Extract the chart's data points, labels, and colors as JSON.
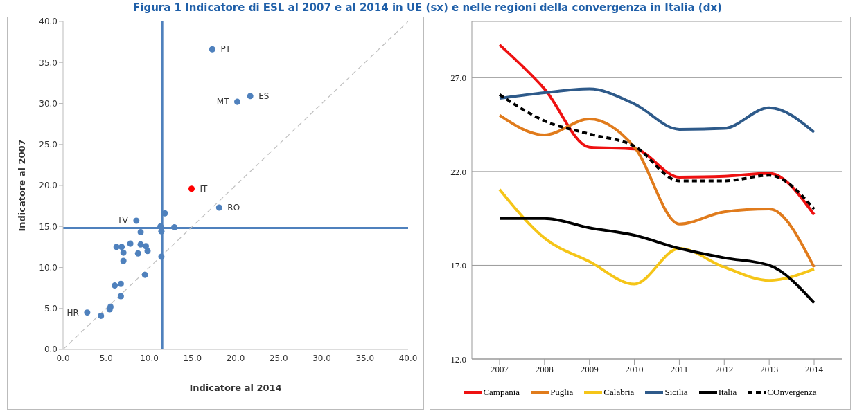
{
  "chart_data": [
    {
      "type": "scatter",
      "title": "Figura 1 Indicatore di ESL al 2007 e al 2014 in UE (sx) e nelle regioni della convergenza in Italia (dx)",
      "xlabel": "Indicatore al 2014",
      "ylabel": "Indicatore al 2007",
      "xlim": [
        0,
        40
      ],
      "ylim": [
        0,
        40
      ],
      "xticks": [
        {
          "value": 0,
          "label": "0.0"
        },
        {
          "value": 5,
          "label": "5.0"
        },
        {
          "value": 10,
          "label": "10.0"
        },
        {
          "value": 15,
          "label": "15.0"
        },
        {
          "value": 20,
          "label": "20.0"
        },
        {
          "value": 25,
          "label": "25.0"
        },
        {
          "value": 30,
          "label": "30.0"
        },
        {
          "value": 35,
          "label": "35.0"
        },
        {
          "value": 40,
          "label": "40.0"
        }
      ],
      "yticks": [
        {
          "value": 0,
          "label": "0.0"
        },
        {
          "value": 5,
          "label": "5.0"
        },
        {
          "value": 10,
          "label": "10.0"
        },
        {
          "value": 15,
          "label": "15.0"
        },
        {
          "value": 20,
          "label": "20.0"
        },
        {
          "value": 25,
          "label": "25.0"
        },
        {
          "value": 30,
          "label": "30.0"
        },
        {
          "value": 35,
          "label": "35.0"
        },
        {
          "value": 40,
          "label": "40.0"
        }
      ],
      "series": [
        {
          "type": "scatter",
          "x": [
            17.3,
            20.2,
            21.7,
            14.9,
            18.1,
            11.8,
            8.5,
            11.3,
            12.9,
            11.4,
            9.0,
            6.2,
            6.8,
            7.8,
            9.0,
            9.6,
            9.8,
            7.0,
            8.7,
            11.4,
            7.0,
            9.5,
            6.0,
            6.7,
            6.7,
            5.5,
            5.4,
            2.8,
            4.4
          ],
          "values": [
            36.6,
            30.2,
            30.9,
            19.6,
            17.3,
            16.6,
            15.7,
            15.0,
            14.9,
            14.4,
            14.3,
            12.5,
            12.5,
            12.9,
            12.8,
            12.6,
            12.0,
            11.8,
            11.7,
            11.3,
            10.8,
            9.1,
            7.8,
            8.0,
            6.5,
            5.2,
            4.9,
            4.5,
            4.1
          ],
          "colors": [
            "#4f81bd",
            "#4f81bd",
            "#4f81bd",
            "#ff0000",
            "#4f81bd",
            "#4f81bd",
            "#4f81bd",
            "#4f81bd",
            "#4f81bd",
            "#4f81bd",
            "#4f81bd",
            "#4f81bd",
            "#4f81bd",
            "#4f81bd",
            "#4f81bd",
            "#4f81bd",
            "#4f81bd",
            "#4f81bd",
            "#4f81bd",
            "#4f81bd",
            "#4f81bd",
            "#4f81bd",
            "#4f81bd",
            "#4f81bd",
            "#4f81bd",
            "#4f81bd",
            "#4f81bd",
            "#4f81bd",
            "#4f81bd"
          ]
        },
        {
          "type": "line",
          "x": [
            0,
            40
          ],
          "values": [
            0,
            40
          ],
          "color": "#bfbfbf",
          "line_style": "dashed"
        }
      ],
      "ref_lines": [
        {
          "axis": "x",
          "value": 11.5,
          "color": "#4f81bd"
        },
        {
          "axis": "y",
          "value": 14.8,
          "color": "#4f81bd"
        }
      ],
      "annotations": [
        {
          "text": "PT",
          "x": 17.3,
          "y": 36.6
        },
        {
          "text": "MT",
          "x": 20.2,
          "y": 30.2
        },
        {
          "text": "ES",
          "x": 21.7,
          "y": 30.9
        },
        {
          "text": "IT",
          "x": 14.9,
          "y": 19.6
        },
        {
          "text": "RO",
          "x": 18.1,
          "y": 17.3
        },
        {
          "text": "LV",
          "x": 8.5,
          "y": 15.7
        },
        {
          "text": "HR",
          "x": 2.8,
          "y": 4.5
        }
      ],
      "grid": false,
      "legend": false
    },
    {
      "type": "line",
      "categories": [
        "2007",
        "2008",
        "2009",
        "2010",
        "2011",
        "2012",
        "2013",
        "2014"
      ],
      "ylim": [
        12,
        30
      ],
      "yticks": [
        {
          "value": 12,
          "label": "12.0"
        },
        {
          "value": 17,
          "label": "17.0"
        },
        {
          "value": 22,
          "label": "22.0"
        },
        {
          "value": 27,
          "label": "27.0"
        }
      ],
      "series": [
        {
          "name": "Campania",
          "color": "#ee1111",
          "values": [
            28.75,
            26.4,
            23.3,
            23.2,
            21.7,
            21.75,
            21.9,
            19.7
          ]
        },
        {
          "name": "Puglia",
          "color": "#e07b1c",
          "values": [
            25.0,
            23.95,
            24.8,
            23.3,
            19.2,
            19.85,
            20.0,
            16.9
          ]
        },
        {
          "name": "Calabria",
          "color": "#f5c518",
          "values": [
            21.05,
            18.45,
            17.2,
            16.0,
            17.9,
            16.9,
            16.2,
            16.8
          ]
        },
        {
          "name": "Sicilia",
          "color": "#2e5a8a",
          "values": [
            25.9,
            26.2,
            26.4,
            25.6,
            24.25,
            24.3,
            25.4,
            24.1
          ]
        },
        {
          "name": "Italia",
          "color": "#000000",
          "values": [
            19.5,
            19.5,
            19.0,
            18.6,
            17.9,
            17.4,
            17.0,
            15.0
          ]
        },
        {
          "name": "COnvergenza",
          "color": "#000000",
          "line_style": "dashed",
          "values": [
            26.1,
            24.7,
            24.0,
            23.35,
            21.5,
            21.5,
            21.8,
            20.0
          ]
        }
      ],
      "grid": "y",
      "legend": "bottom",
      "marker": "none"
    }
  ]
}
